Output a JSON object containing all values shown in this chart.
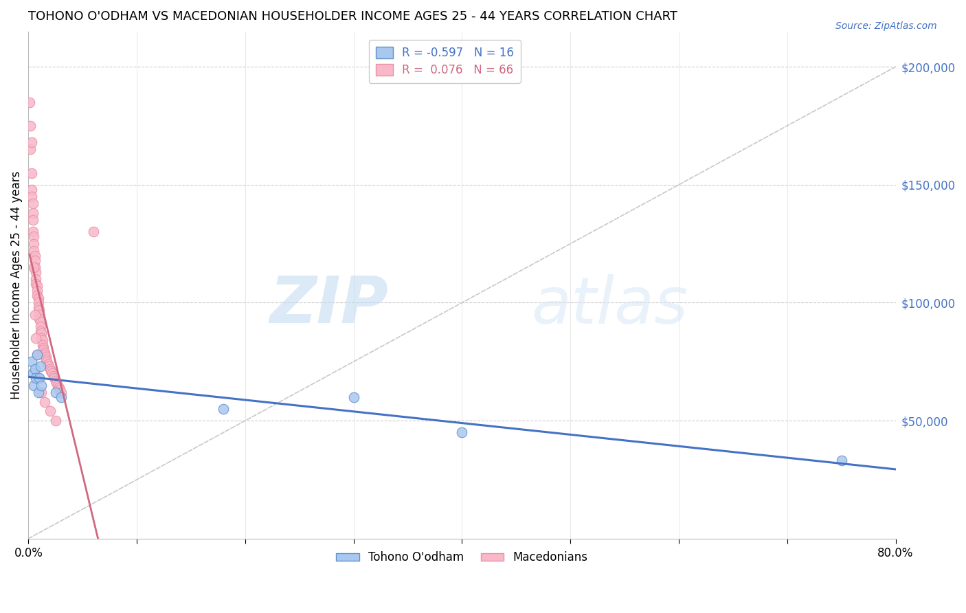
{
  "title": "TOHONO O'ODHAM VS MACEDONIAN HOUSEHOLDER INCOME AGES 25 - 44 YEARS CORRELATION CHART",
  "source": "Source: ZipAtlas.com",
  "ylabel": "Householder Income Ages 25 - 44 years",
  "watermark_zip": "ZIP",
  "watermark_atlas": "atlas",
  "xlim": [
    0.0,
    0.8
  ],
  "ylim": [
    0,
    215000
  ],
  "yticks": [
    0,
    50000,
    100000,
    150000,
    200000
  ],
  "xticks": [
    0.0,
    0.1,
    0.2,
    0.3,
    0.4,
    0.5,
    0.6,
    0.7,
    0.8
  ],
  "legend_R_blue": "-0.597",
  "legend_N_blue": "16",
  "legend_R_pink": "0.076",
  "legend_N_pink": "66",
  "blue_fill": "#A8C8F0",
  "pink_fill": "#F8B8C8",
  "blue_edge": "#6090C8",
  "pink_edge": "#E890A8",
  "trend_blue": "#4472C4",
  "trend_pink": "#D06880",
  "diag_color": "#C8C8C8",
  "tohono_x": [
    0.003,
    0.004,
    0.005,
    0.006,
    0.007,
    0.008,
    0.009,
    0.01,
    0.011,
    0.012,
    0.025,
    0.03,
    0.18,
    0.3,
    0.4,
    0.75
  ],
  "tohono_y": [
    75000,
    70000,
    65000,
    72000,
    68000,
    78000,
    62000,
    68000,
    73000,
    65000,
    62000,
    60000,
    55000,
    60000,
    45000,
    33000
  ],
  "macedonian_x": [
    0.001,
    0.002,
    0.002,
    0.003,
    0.003,
    0.003,
    0.004,
    0.004,
    0.004,
    0.005,
    0.005,
    0.005,
    0.006,
    0.006,
    0.006,
    0.007,
    0.007,
    0.007,
    0.008,
    0.008,
    0.008,
    0.009,
    0.009,
    0.009,
    0.01,
    0.01,
    0.01,
    0.011,
    0.011,
    0.011,
    0.012,
    0.012,
    0.013,
    0.013,
    0.014,
    0.014,
    0.015,
    0.015,
    0.016,
    0.016,
    0.017,
    0.018,
    0.019,
    0.02,
    0.021,
    0.022,
    0.023,
    0.024,
    0.025,
    0.026,
    0.027,
    0.028,
    0.029,
    0.03,
    0.003,
    0.004,
    0.005,
    0.006,
    0.007,
    0.008,
    0.01,
    0.012,
    0.015,
    0.02,
    0.025,
    0.06
  ],
  "macedonian_y": [
    185000,
    175000,
    165000,
    155000,
    148000,
    145000,
    138000,
    135000,
    130000,
    128000,
    125000,
    122000,
    120000,
    118000,
    115000,
    113000,
    110000,
    108000,
    107000,
    105000,
    103000,
    102000,
    100000,
    98000,
    97000,
    95000,
    93000,
    92000,
    90000,
    88000,
    87000,
    85000,
    84000,
    82000,
    81000,
    80000,
    79000,
    78000,
    77000,
    76000,
    75000,
    74000,
    73000,
    72000,
    71000,
    70000,
    69000,
    68000,
    67000,
    66000,
    65000,
    64000,
    63000,
    62000,
    168000,
    142000,
    115000,
    95000,
    85000,
    78000,
    68000,
    62000,
    58000,
    54000,
    50000,
    130000
  ]
}
